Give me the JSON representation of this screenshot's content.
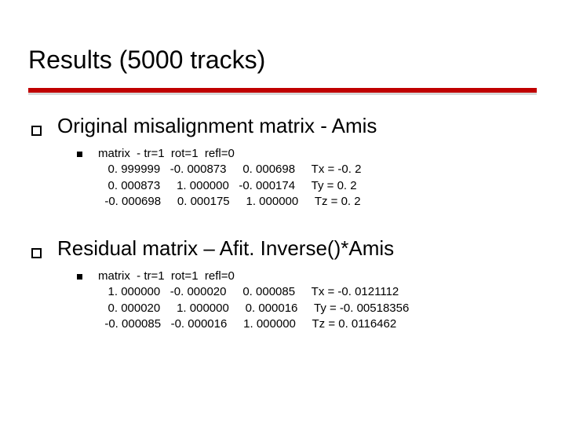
{
  "title": "Results (5000 tracks)",
  "accent_color": "#c00000",
  "background_color": "#ffffff",
  "text_color": "#000000",
  "sections": [
    {
      "heading": "Original misalignment matrix - Amis",
      "matrix_header": "matrix  - tr=1  rot=1  refl=0",
      "rows": [
        [
          " 0. 999999",
          "-0. 000873",
          " 0. 000698"
        ],
        [
          " 0. 000873",
          " 1. 000000",
          "-0. 000174"
        ],
        [
          "-0. 000698",
          " 0. 000175",
          " 1. 000000"
        ]
      ],
      "translations": [
        "Tx = -0. 2",
        "Ty = 0. 2",
        "Tz = 0. 2"
      ]
    },
    {
      "heading": "Residual matrix – Afit. Inverse()*Amis",
      "matrix_header": "matrix  - tr=1  rot=1  refl=0",
      "rows": [
        [
          " 1. 000000",
          "-0. 000020",
          " 0. 000085"
        ],
        [
          " 0. 000020",
          " 1. 000000",
          " 0. 000016"
        ],
        [
          "-0. 000085",
          "-0. 000016",
          " 1. 000000"
        ]
      ],
      "translations": [
        "Tx = -0. 0121112",
        "Ty = -0. 00518356",
        "Tz = 0. 0116462"
      ]
    }
  ]
}
